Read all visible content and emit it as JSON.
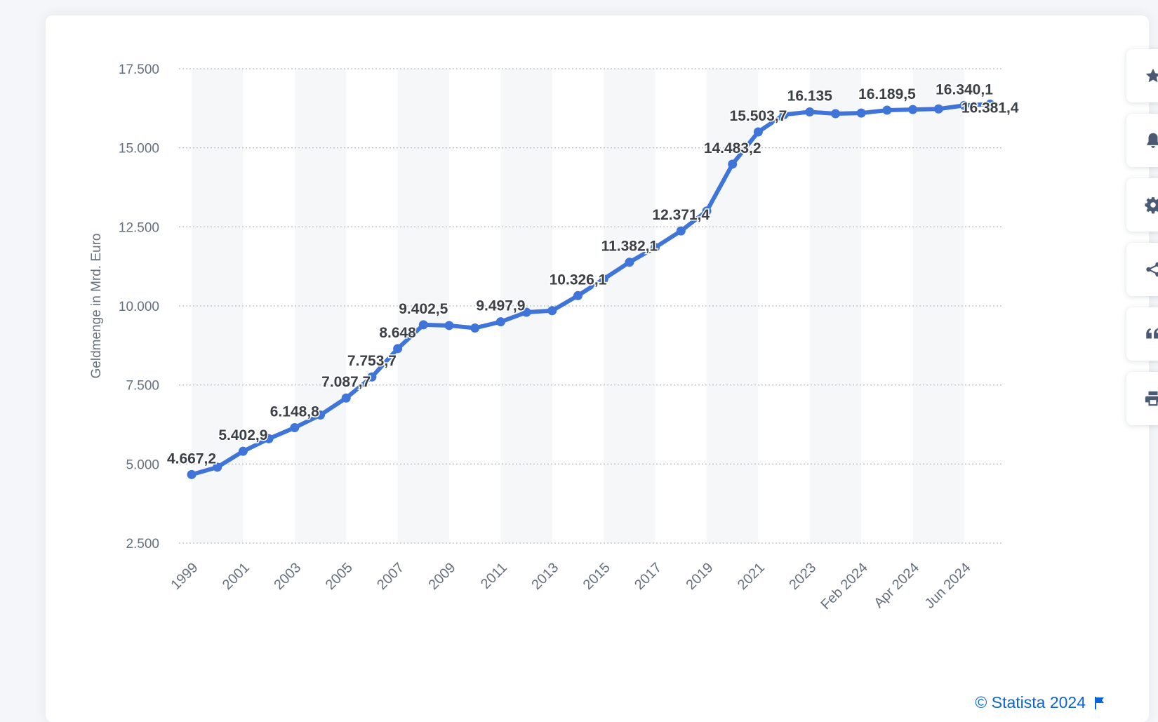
{
  "chart_data": {
    "type": "line",
    "ylabel": "Geldmenge in Mrd. Euro",
    "ylim": [
      2500,
      17500
    ],
    "y_ticks": [
      2500,
      5000,
      7500,
      10000,
      12500,
      15000,
      17500
    ],
    "y_tick_labels": [
      "2.500",
      "5.000",
      "7.500",
      "10.000",
      "12.500",
      "15.000",
      "17.500"
    ],
    "x_tick_labels": [
      "1999",
      "2001",
      "2003",
      "2005",
      "2007",
      "2009",
      "2011",
      "2013",
      "2015",
      "2017",
      "2019",
      "2021",
      "2023",
      "Feb 2024",
      "Apr 2024",
      "Jun 2024"
    ],
    "x_tick_index": [
      0,
      2,
      4,
      6,
      8,
      10,
      12,
      14,
      16,
      18,
      20,
      22,
      24,
      26,
      28,
      30
    ],
    "grid": "horizontal dotted",
    "legend": "none",
    "line_color": "#3f74d9",
    "x": [
      "1999",
      "2000",
      "2001",
      "2002",
      "2003",
      "2004",
      "2005",
      "2006",
      "2007",
      "2008",
      "2009",
      "2010",
      "2011",
      "2012",
      "2013",
      "2014",
      "2015",
      "2016",
      "2017",
      "2018",
      "2019",
      "2020",
      "2021",
      "2022",
      "2023",
      "Jan 2024",
      "Feb 2024",
      "Mar 2024",
      "Apr 2024",
      "May 2024",
      "Jun 2024",
      "Jul 2024"
    ],
    "values": [
      4667.2,
      4900,
      5402.9,
      5800,
      6148.8,
      6550,
      7087.7,
      7753.7,
      8648,
      9402.5,
      9380,
      9300,
      9497.9,
      9800,
      9850,
      10326.1,
      10850,
      11382.1,
      11850,
      12371.4,
      13000,
      14483.2,
      15503.7,
      16050,
      16135,
      16080,
      16100,
      16189.5,
      16210,
      16230,
      16340.1,
      16381.4
    ],
    "data_labels": [
      {
        "index": 0,
        "text": "4.667,2"
      },
      {
        "index": 2,
        "text": "5.402,9"
      },
      {
        "index": 4,
        "text": "6.148,8"
      },
      {
        "index": 6,
        "text": "7.087,7"
      },
      {
        "index": 7,
        "text": "7.753,7"
      },
      {
        "index": 8,
        "text": "8.648"
      },
      {
        "index": 9,
        "text": "9.402,5"
      },
      {
        "index": 12,
        "text": "9.497,9"
      },
      {
        "index": 15,
        "text": "10.326,1"
      },
      {
        "index": 17,
        "text": "11.382,1"
      },
      {
        "index": 19,
        "text": "12.371,4"
      },
      {
        "index": 21,
        "text": "14.483,2"
      },
      {
        "index": 22,
        "text": "15.503,7"
      },
      {
        "index": 24,
        "text": "16.135"
      },
      {
        "index": 27,
        "text": "16.189,5"
      },
      {
        "index": 30,
        "text": "16.340,1"
      },
      {
        "index": 31,
        "text": "16.381,4"
      }
    ]
  },
  "toolbar": {
    "buttons": [
      {
        "name": "favorite-button",
        "icon": "star-icon"
      },
      {
        "name": "notification-button",
        "icon": "bell-icon"
      },
      {
        "name": "settings-button",
        "icon": "gear-icon"
      },
      {
        "name": "share-button",
        "icon": "share-icon"
      },
      {
        "name": "cite-button",
        "icon": "quote-icon"
      },
      {
        "name": "print-button",
        "icon": "printer-icon"
      }
    ],
    "icon_color": "#4a5a73"
  },
  "credit": {
    "text": "© Statista 2024",
    "color": "#0a63d8"
  }
}
